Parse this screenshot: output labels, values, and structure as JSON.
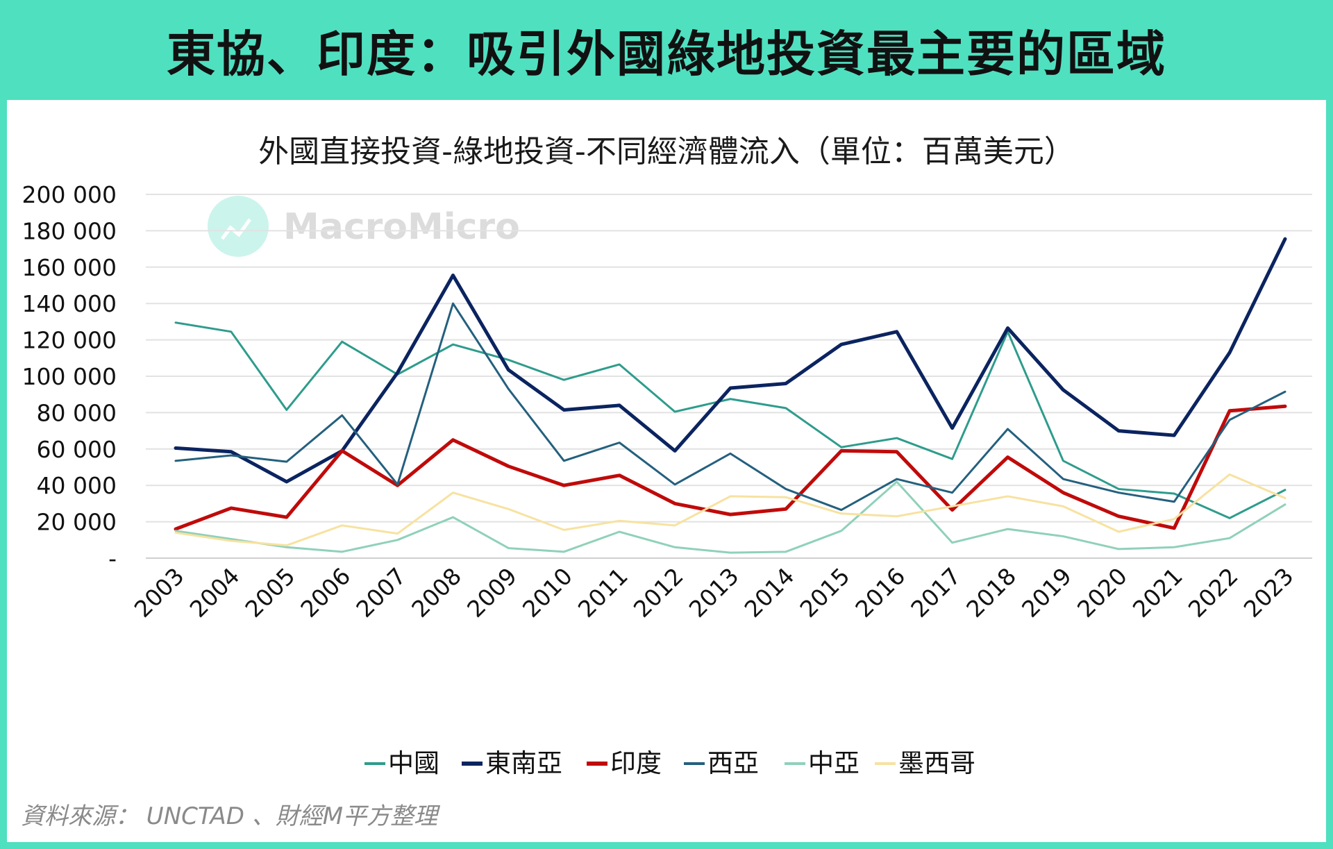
{
  "banner": {
    "title": "東協、印度：吸引外國綠地投資最主要的區域"
  },
  "watermark": {
    "text": "MacroMicro",
    "color": "#a8ece0"
  },
  "source": "資料來源： UNCTAD 、財經M平方整理",
  "chart_data": {
    "type": "line",
    "title": "外國直接投資-綠地投資-不同經濟體流入（單位：百萬美元）",
    "xlabel": "",
    "ylabel": "",
    "ylim": [
      0,
      200000
    ],
    "yticks": [
      0,
      20000,
      40000,
      60000,
      80000,
      100000,
      120000,
      140000,
      160000,
      180000,
      200000
    ],
    "ytick_labels": [
      "-",
      "20 000",
      "40 000",
      "60 000",
      "80 000",
      "100 000",
      "120 000",
      "140 000",
      "160 000",
      "180 000",
      "200 000"
    ],
    "grid": true,
    "legend_position": "bottom",
    "categories": [
      "2003",
      "2004",
      "2005",
      "2006",
      "2007",
      "2008",
      "2009",
      "2010",
      "2011",
      "2012",
      "2013",
      "2014",
      "2015",
      "2016",
      "2017",
      "2018",
      "2019",
      "2020",
      "2021",
      "2022",
      "2023"
    ],
    "series": [
      {
        "name": "中國",
        "color": "#2e9c8c",
        "width": 3,
        "values": [
          129500,
          124500,
          81500,
          119000,
          101000,
          117500,
          109000,
          98000,
          106500,
          80500,
          87500,
          82500,
          61000,
          66000,
          54500,
          124500,
          53500,
          38000,
          35500,
          22000,
          37500
        ]
      },
      {
        "name": "東南亞",
        "color": "#0b2460",
        "width": 5,
        "values": [
          60500,
          58500,
          42000,
          59000,
          102000,
          155500,
          103500,
          81500,
          84000,
          59000,
          93500,
          96000,
          117500,
          124500,
          71500,
          126500,
          92500,
          70000,
          67500,
          113000,
          175500
        ]
      },
      {
        "name": "印度",
        "color": "#c00a0a",
        "width": 5,
        "values": [
          16000,
          27500,
          22500,
          59000,
          40000,
          65000,
          50500,
          40000,
          45500,
          30000,
          24000,
          27000,
          59000,
          58500,
          26500,
          55500,
          36000,
          23000,
          16500,
          81000,
          83500
        ]
      },
      {
        "name": "西亞",
        "color": "#24607e",
        "width": 3,
        "values": [
          53500,
          56500,
          53000,
          78500,
          40500,
          140000,
          93000,
          53500,
          63500,
          40500,
          57500,
          38000,
          26500,
          43500,
          36000,
          71000,
          43500,
          36000,
          31000,
          76000,
          91500
        ]
      },
      {
        "name": "中亞",
        "color": "#8fd1b9",
        "width": 3,
        "values": [
          15000,
          10500,
          6000,
          3500,
          10000,
          22500,
          5500,
          3500,
          14500,
          6000,
          3000,
          3500,
          15000,
          42000,
          8500,
          16000,
          12000,
          5000,
          6000,
          11000,
          29500
        ]
      },
      {
        "name": "墨西哥",
        "color": "#f7e2a0",
        "width": 3,
        "values": [
          14000,
          9500,
          7000,
          18000,
          13500,
          36000,
          27000,
          15500,
          20500,
          18000,
          34000,
          33500,
          24500,
          23000,
          28500,
          34000,
          28500,
          14500,
          21500,
          46000,
          33000
        ]
      }
    ]
  }
}
